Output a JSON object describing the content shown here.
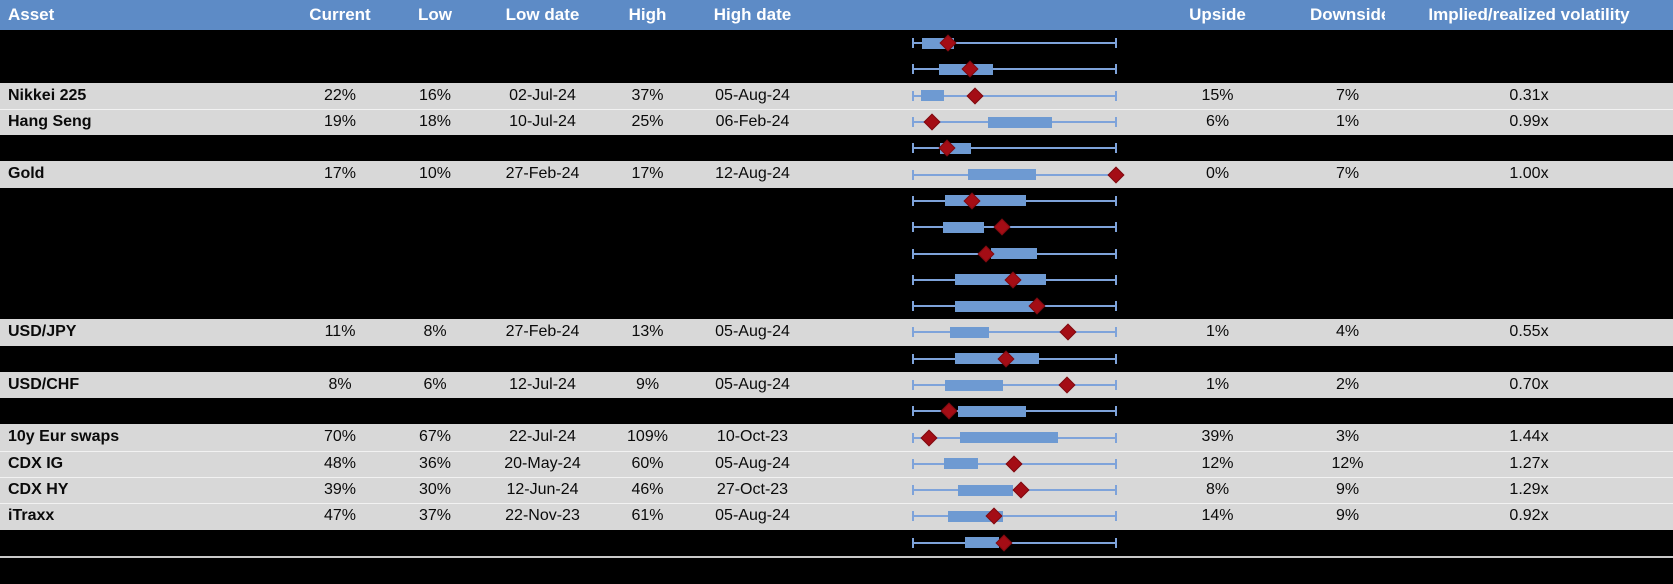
{
  "header": {
    "asset": "Asset",
    "current": "Current",
    "low": "Low",
    "low_date": "Low date",
    "high": "High",
    "high_date": "High date",
    "range": "",
    "upside": "Upside",
    "downside": "Downside",
    "implied": "Implied/realized volatility"
  },
  "colors": {
    "header_bg": "#5D8BC6",
    "header_text": "#FFFFFF",
    "row_gray": "#D8D8D8",
    "row_black": "#000000",
    "box_fill": "#6E9AD2",
    "whisker": "#7EA3DA",
    "marker": "#A40D15",
    "divider": "#C9C9C9"
  },
  "chart_data": {
    "type": "table",
    "columns": [
      "Asset",
      "Current",
      "Low",
      "Low date",
      "High",
      "High date",
      "Range box plot",
      "Upside",
      "Downside",
      "Implied/realized volatility"
    ],
    "boxplot_scale": "normalized 0-1 along whisker span",
    "rows": [
      {
        "style": "black",
        "asset": "",
        "current": "",
        "low": "",
        "low_date": "",
        "high": "",
        "high_date": "",
        "upside": "",
        "downside": "",
        "implied": "",
        "box": [
          0.05,
          0.203
        ],
        "marker": 0.174
      },
      {
        "style": "black",
        "asset": "",
        "current": "",
        "low": "",
        "low_date": "",
        "high": "",
        "high_date": "",
        "upside": "",
        "downside": "",
        "implied": "",
        "box": [
          0.13,
          0.394
        ],
        "marker": 0.285
      },
      {
        "style": "gray",
        "asset": "Nikkei 225",
        "current": "22%",
        "low": "16%",
        "low_date": "02-Jul-24",
        "high": "37%",
        "high_date": "05-Aug-24",
        "upside": "15%",
        "downside": "7%",
        "implied": "0.31x",
        "box": [
          0.044,
          0.158
        ],
        "marker": 0.309
      },
      {
        "style": "gray",
        "asset": "Hang Seng",
        "current": "19%",
        "low": "18%",
        "low_date": "10-Jul-24",
        "high": "25%",
        "high_date": "06-Feb-24",
        "upside": "6%",
        "downside": "1%",
        "implied": "0.99x",
        "box": [
          0.369,
          0.681
        ],
        "marker": 0.098
      },
      {
        "style": "black",
        "asset": "",
        "current": "",
        "low": "",
        "low_date": "",
        "high": "",
        "high_date": "",
        "upside": "",
        "downside": "",
        "implied": "",
        "box": [
          0.137,
          0.288
        ],
        "marker": 0.169
      },
      {
        "style": "gray",
        "asset": "Gold",
        "current": "17%",
        "low": "10%",
        "low_date": "27-Feb-24",
        "high": "17%",
        "high_date": "12-Aug-24",
        "upside": "0%",
        "downside": "7%",
        "implied": "1.00x",
        "box": [
          0.272,
          0.605
        ],
        "marker": 0.995
      },
      {
        "style": "black",
        "asset": "",
        "current": "",
        "low": "",
        "low_date": "",
        "high": "",
        "high_date": "",
        "upside": "",
        "downside": "",
        "implied": "",
        "box": [
          0.163,
          0.556
        ],
        "marker": 0.293
      },
      {
        "style": "black",
        "asset": "",
        "current": "",
        "low": "",
        "low_date": "",
        "high": "",
        "high_date": "",
        "upside": "",
        "downside": "",
        "implied": "",
        "box": [
          0.15,
          0.353
        ],
        "marker": 0.437
      },
      {
        "style": "black",
        "asset": "",
        "current": "",
        "low": "",
        "low_date": "",
        "high": "",
        "high_date": "",
        "upside": "",
        "downside": "",
        "implied": "",
        "box": [
          0.385,
          0.61
        ],
        "marker": 0.361
      },
      {
        "style": "black",
        "asset": "",
        "current": "",
        "low": "",
        "low_date": "",
        "high": "",
        "high_date": "",
        "upside": "",
        "downside": "",
        "implied": "",
        "box": [
          0.211,
          0.654
        ],
        "marker": 0.491
      },
      {
        "style": "black",
        "asset": "",
        "current": "",
        "low": "",
        "low_date": "",
        "high": "",
        "high_date": "",
        "upside": "",
        "downside": "",
        "implied": "",
        "box": [
          0.211,
          0.6
        ],
        "marker": 0.61
      },
      {
        "style": "gray",
        "asset": "USD/JPY",
        "current": "11%",
        "low": "8%",
        "low_date": "27-Feb-24",
        "high": "13%",
        "high_date": "05-Aug-24",
        "upside": "1%",
        "downside": "4%",
        "implied": "0.55x",
        "box": [
          0.185,
          0.377
        ],
        "marker": 0.759
      },
      {
        "style": "black",
        "asset": "",
        "current": "",
        "low": "",
        "low_date": "",
        "high": "",
        "high_date": "",
        "upside": "",
        "downside": "",
        "implied": "",
        "box": [
          0.211,
          0.618
        ],
        "marker": 0.459
      },
      {
        "style": "gray",
        "asset": "USD/CHF",
        "current": "8%",
        "low": "6%",
        "low_date": "12-Jul-24",
        "high": "9%",
        "high_date": "05-Aug-24",
        "upside": "1%",
        "downside": "2%",
        "implied": "0.70x",
        "box": [
          0.163,
          0.442
        ],
        "marker": 0.756
      },
      {
        "style": "black",
        "asset": "",
        "current": "",
        "low": "",
        "low_date": "",
        "high": "",
        "high_date": "",
        "upside": "",
        "downside": "",
        "implied": "",
        "box": [
          0.223,
          0.556
        ],
        "marker": 0.182
      },
      {
        "style": "gray",
        "asset": "10y Eur swaps",
        "current": "70%",
        "low": "67%",
        "low_date": "22-Jul-24",
        "high": "109%",
        "high_date": "10-Oct-23",
        "upside": "39%",
        "downside": "3%",
        "implied": "1.44x",
        "box": [
          0.236,
          0.71
        ],
        "marker": 0.081
      },
      {
        "style": "gray",
        "asset": "CDX IG",
        "current": "48%",
        "low": "36%",
        "low_date": "20-May-24",
        "high": "60%",
        "high_date": "05-Aug-24",
        "upside": "12%",
        "downside": "12%",
        "implied": "1.27x",
        "box": [
          0.158,
          0.323
        ],
        "marker": 0.499
      },
      {
        "style": "gray",
        "asset": "CDX HY",
        "current": "39%",
        "low": "30%",
        "low_date": "12-Jun-24",
        "high": "46%",
        "high_date": "27-Oct-23",
        "upside": "8%",
        "downside": "9%",
        "implied": "1.29x",
        "box": [
          0.223,
          0.494
        ],
        "marker": 0.532
      },
      {
        "style": "gray",
        "asset": "iTraxx",
        "current": "47%",
        "low": "37%",
        "low_date": "22-Nov-23",
        "high": "61%",
        "high_date": "05-Aug-24",
        "upside": "14%",
        "downside": "9%",
        "implied": "0.92x",
        "box": [
          0.174,
          0.442
        ],
        "marker": 0.402
      },
      {
        "style": "black",
        "asset": "",
        "current": "",
        "low": "",
        "low_date": "",
        "high": "",
        "high_date": "",
        "upside": "",
        "downside": "",
        "implied": "",
        "box": [
          0.26,
          0.423
        ],
        "marker": 0.45
      }
    ]
  }
}
